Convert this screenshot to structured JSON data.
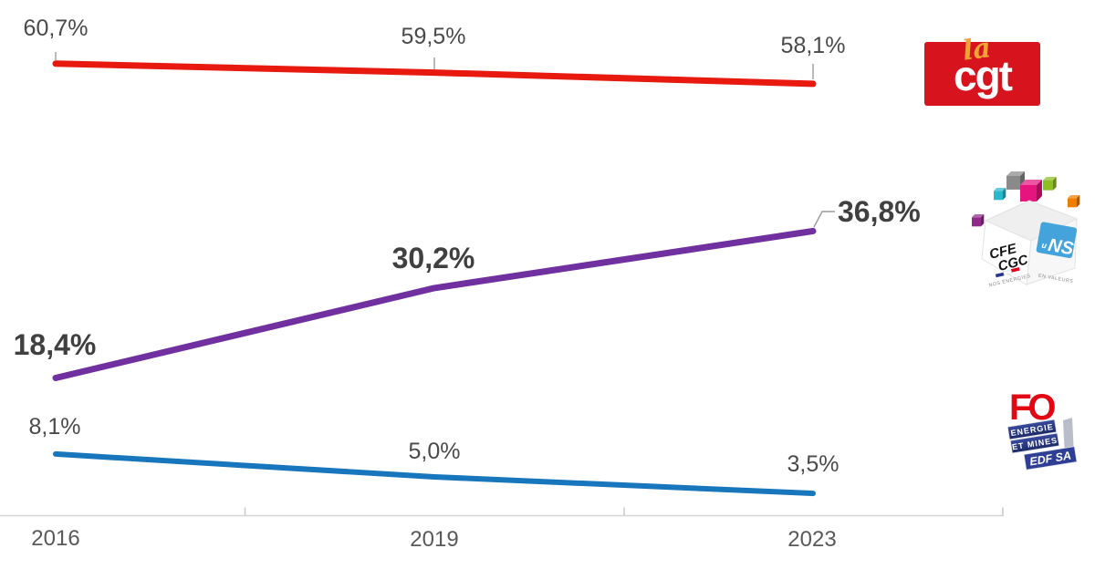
{
  "chart_data": {
    "type": "line",
    "title": "",
    "xlabel": "",
    "ylabel": "",
    "x": [
      "2016",
      "2019",
      "2023"
    ],
    "series": [
      {
        "name": "CGT",
        "color": "#e8190f",
        "values": [
          60.7,
          59.5,
          58.1
        ],
        "point_labels": [
          "60,7%",
          "59,5%",
          "58,1%"
        ],
        "label_style": "regular"
      },
      {
        "name": "CFE-CGC Énergies",
        "color": "#7030a0",
        "values": [
          18.4,
          30.2,
          36.8
        ],
        "point_labels": [
          "18,4%",
          "30,2%",
          "36,8%"
        ],
        "label_style": "bold"
      },
      {
        "name": "FO Énergie et Mines",
        "color": "#1876bc",
        "values": [
          8.1,
          5.0,
          3.5
        ],
        "point_labels": [
          "8,1%",
          "5,0%",
          "3,5%"
        ],
        "label_style": "regular"
      }
    ],
    "ylim": [
      0,
      70
    ],
    "grid": false,
    "legend_position": "right-logos",
    "axis_color": "#d6d6d6",
    "label_color": "#4a4a4a"
  },
  "logos": {
    "cgt": {
      "script_text": "la",
      "text": "cgt",
      "bg_color": "#d7141e",
      "script_color": "#f2a338",
      "text_color": "#ffffff"
    },
    "cfe_cgc": {
      "line1": "CFE",
      "line2": "CGC",
      "panel_prefix": "u",
      "panel_letters": "NS",
      "tagline_left": "NOS ÉNERGIES",
      "tagline_right": "EN VALEURS",
      "panel_color": "#44a3db",
      "cube_colors": [
        "#8a8a8a",
        "#e6147e",
        "#8dbe22",
        "#29b7cb",
        "#ef7d00",
        "#8f2a8b"
      ]
    },
    "fo": {
      "name": "FO",
      "name_color": "#e30613",
      "banners": [
        "ENERGIE",
        "ET MINES",
        "EDF SA"
      ]
    }
  }
}
